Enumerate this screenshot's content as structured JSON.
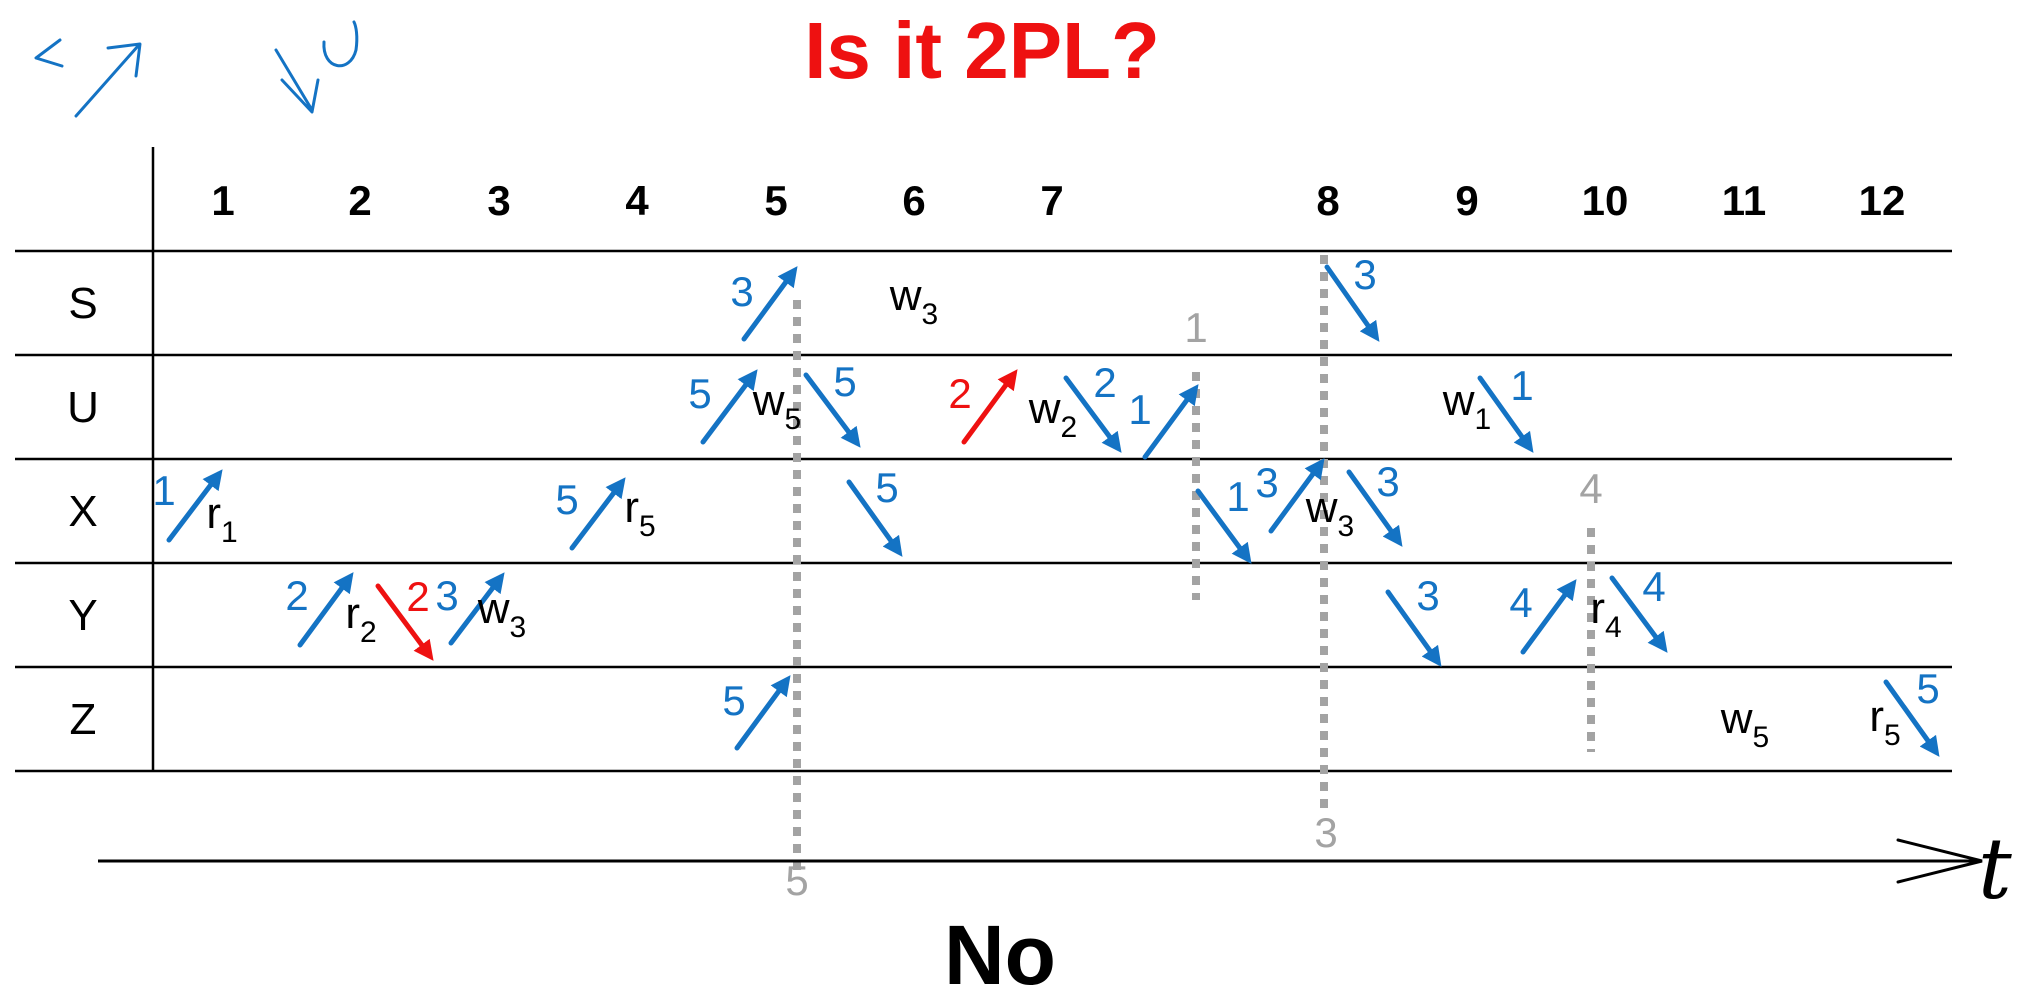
{
  "title": "Is it 2PL?",
  "answer": "No",
  "axis_label": "t",
  "colors": {
    "title": "#ee1111",
    "lock": "#1473c4",
    "conflict": "#ee1111",
    "lockpoint": "#a3a3a3",
    "ink": "#000000"
  },
  "time_steps": [
    "1",
    "2",
    "3",
    "4",
    "5",
    "6",
    "7",
    "8",
    "9",
    "10",
    "11",
    "12"
  ],
  "rows": [
    "S",
    "U",
    "X",
    "Y",
    "Z"
  ],
  "operations": [
    {
      "op": "r",
      "txn": "1",
      "item": "X",
      "step": 1
    },
    {
      "op": "r",
      "txn": "2",
      "item": "Y",
      "step": 2
    },
    {
      "op": "w",
      "txn": "3",
      "item": "Y",
      "step": 3
    },
    {
      "op": "r",
      "txn": "5",
      "item": "X",
      "step": 4
    },
    {
      "op": "w",
      "txn": "5",
      "item": "U",
      "step": 5
    },
    {
      "op": "w",
      "txn": "3",
      "item": "S",
      "step": 6
    },
    {
      "op": "w",
      "txn": "2",
      "item": "U",
      "step": 7
    },
    {
      "op": "w",
      "txn": "3",
      "item": "X",
      "step": 8
    },
    {
      "op": "w",
      "txn": "1",
      "item": "U",
      "step": 9
    },
    {
      "op": "r",
      "txn": "4",
      "item": "Y",
      "step": 10
    },
    {
      "op": "w",
      "txn": "5",
      "item": "Z",
      "step": 11
    },
    {
      "op": "r",
      "txn": "5",
      "item": "Z",
      "step": 12
    }
  ],
  "lock_events": [
    {
      "kind": "lock",
      "txn": "1",
      "item": "X",
      "conflict": false
    },
    {
      "kind": "lock",
      "txn": "2",
      "item": "Y",
      "conflict": false
    },
    {
      "kind": "unlock",
      "txn": "2",
      "item": "Y",
      "conflict": true
    },
    {
      "kind": "lock",
      "txn": "3",
      "item": "Y",
      "conflict": false
    },
    {
      "kind": "lock",
      "txn": "5",
      "item": "X",
      "conflict": false
    },
    {
      "kind": "lock",
      "txn": "3",
      "item": "S",
      "conflict": false
    },
    {
      "kind": "lock",
      "txn": "5",
      "item": "U",
      "conflict": false
    },
    {
      "kind": "lock",
      "txn": "5",
      "item": "Z",
      "conflict": false
    },
    {
      "kind": "unlock",
      "txn": "5",
      "item": "U",
      "conflict": false
    },
    {
      "kind": "unlock",
      "txn": "5",
      "item": "X",
      "conflict": false
    },
    {
      "kind": "lock",
      "txn": "2",
      "item": "U",
      "conflict": true
    },
    {
      "kind": "unlock",
      "txn": "2",
      "item": "U",
      "conflict": false
    },
    {
      "kind": "lock",
      "txn": "1",
      "item": "U",
      "conflict": false
    },
    {
      "kind": "unlock",
      "txn": "1",
      "item": "X",
      "conflict": false
    },
    {
      "kind": "lock",
      "txn": "3",
      "item": "X",
      "conflict": false
    },
    {
      "kind": "unlock",
      "txn": "3",
      "item": "S",
      "conflict": false
    },
    {
      "kind": "unlock",
      "txn": "3",
      "item": "X",
      "conflict": false
    },
    {
      "kind": "unlock",
      "txn": "3",
      "item": "Y",
      "conflict": false
    },
    {
      "kind": "unlock",
      "txn": "1",
      "item": "U",
      "conflict": false
    },
    {
      "kind": "lock",
      "txn": "4",
      "item": "Y",
      "conflict": false
    },
    {
      "kind": "unlock",
      "txn": "4",
      "item": "Y",
      "conflict": false
    },
    {
      "kind": "unlock",
      "txn": "5",
      "item": "Z",
      "conflict": false
    }
  ],
  "lock_points": [
    "5",
    "1",
    "3",
    "4"
  ],
  "legend_lock_icon": "lock-arrow-icon",
  "legend_unlock_icon": "unlock-arrow-icon"
}
